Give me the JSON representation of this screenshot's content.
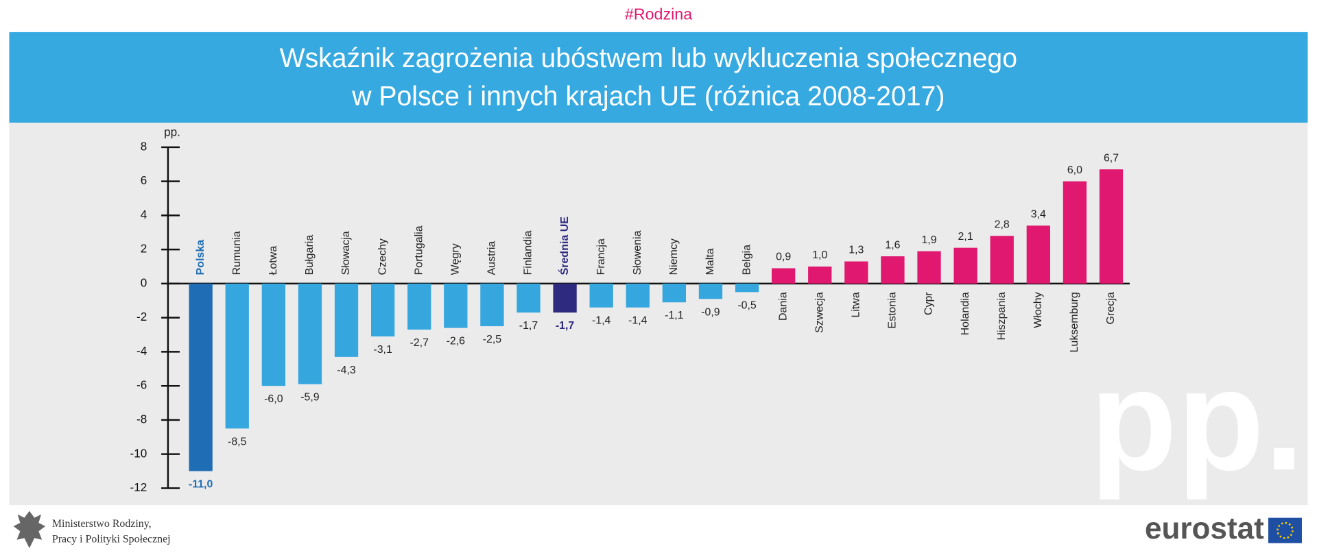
{
  "header": {
    "tag": "#Rodzina"
  },
  "chart_data": {
    "type": "bar",
    "title": [
      "Wskaźnik zagrożenia ubóstwem lub wykluczenia społecznego",
      "w Polsce i innych krajach UE (różnica 2008-2017)"
    ],
    "y_label": "pp.",
    "watermark": "pp.",
    "categories": [
      "Polska",
      "Rumunia",
      "Łotwa",
      "Bułgaria",
      "Słowacja",
      "Czechy",
      "Portugalia",
      "Węgry",
      "Austria",
      "Finlandia",
      "Średnia UE",
      "Francja",
      "Słowenia",
      "Niemcy",
      "Malta",
      "Belgia",
      "Dania",
      "Szwecja",
      "Litwa",
      "Estonia",
      "Cypr",
      "Holandia",
      "Hiszpania",
      "Włochy",
      "Luksemburg",
      "Grecja"
    ],
    "values": [
      -11.0,
      -8.5,
      -6.0,
      -5.9,
      -4.3,
      -3.1,
      -2.7,
      -2.6,
      -2.5,
      -1.7,
      -1.7,
      -1.4,
      -1.4,
      -1.1,
      -0.9,
      -0.5,
      0.9,
      1.0,
      1.3,
      1.6,
      1.9,
      2.1,
      2.8,
      3.4,
      6.0,
      6.7
    ],
    "value_labels": [
      "-11,0",
      "-8,5",
      "-6,0",
      "-5,9",
      "-4,3",
      "-3,1",
      "-2,7",
      "-2,6",
      "-2,5",
      "-1,7",
      "-1,7",
      "-1,4",
      "-1,4",
      "-1,1",
      "-0,9",
      "-0,5",
      "0,9",
      "1,0",
      "1,3",
      "1,6",
      "1,9",
      "2,1",
      "2,8",
      "3,4",
      "6,0",
      "6,7"
    ],
    "colors": [
      "#1f6db5",
      "#35a6de",
      "#35a6de",
      "#35a6de",
      "#35a6de",
      "#35a6de",
      "#35a6de",
      "#35a6de",
      "#35a6de",
      "#35a6de",
      "#2e2a7f",
      "#35a6de",
      "#35a6de",
      "#35a6de",
      "#35a6de",
      "#35a6de",
      "#e0186f",
      "#e0186f",
      "#e0186f",
      "#e0186f",
      "#e0186f",
      "#e0186f",
      "#e0186f",
      "#e0186f",
      "#e0186f",
      "#e0186f"
    ],
    "highlight": [
      0,
      10
    ],
    "ylim": [
      -12,
      8
    ],
    "yticks": [
      -12,
      -10,
      -8,
      -6,
      -4,
      -2,
      0,
      2,
      4,
      6,
      8
    ]
  },
  "footer": {
    "ministry": [
      "Ministerstwo Rodziny,",
      "Pracy i Polityki Społecznej"
    ],
    "logo": "eurostat"
  }
}
